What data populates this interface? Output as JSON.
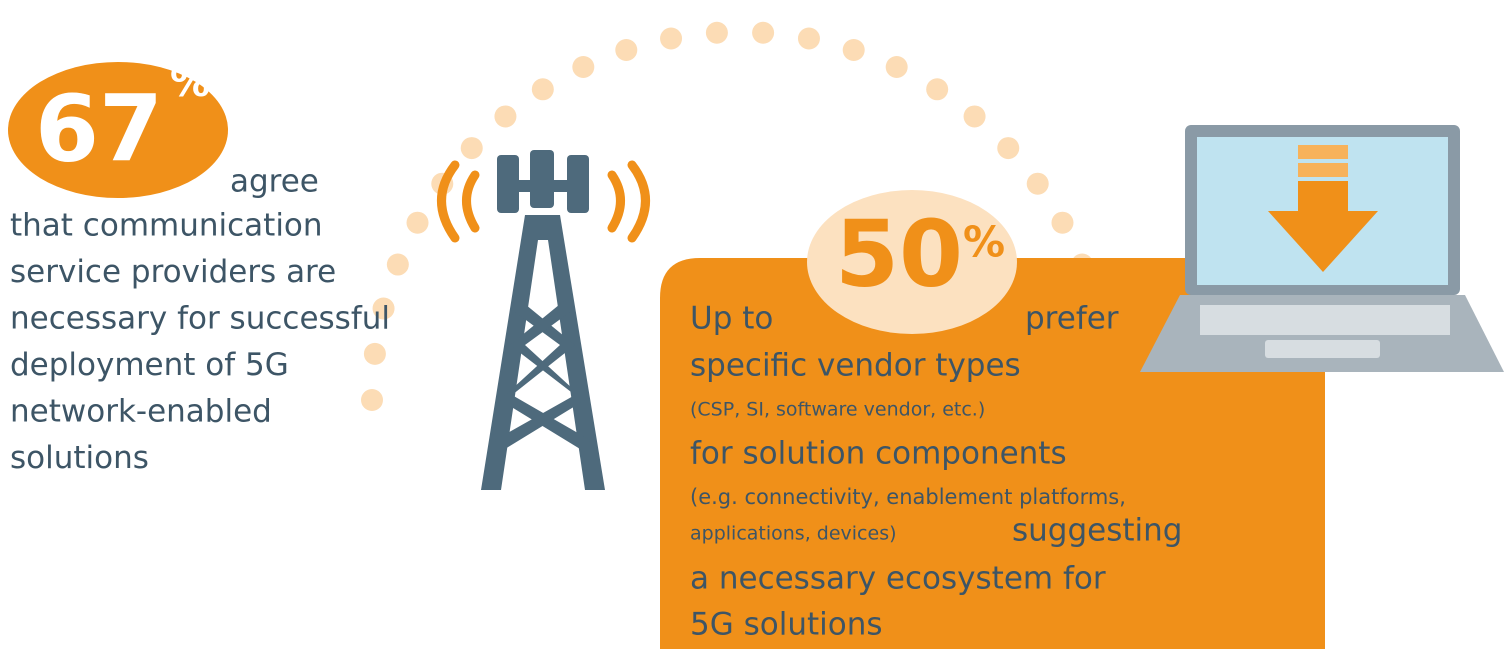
{
  "left_stat": {
    "number": "67",
    "unit": "%",
    "lead": "agree",
    "lines": [
      "that communication",
      "service providers are",
      "necessary for successful",
      "deployment of 5G",
      "network-enabled",
      "solutions"
    ]
  },
  "right_stat": {
    "prefix": "Up to",
    "number": "50",
    "unit": "%",
    "lead": "prefer",
    "line1": "specific vendor types",
    "note1": "(CSP, SI, software vendor, etc.)",
    "line2": "for solution components",
    "note2a": "(e.g. connectivity, enablement platforms,",
    "note2b": "applications, devices)",
    "line3": "suggesting",
    "line4": "a necessary ecosystem for",
    "line5": "5G solutions"
  }
}
